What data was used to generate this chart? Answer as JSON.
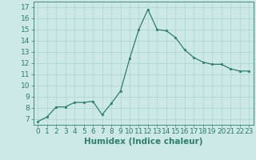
{
  "x": [
    0,
    1,
    2,
    3,
    4,
    5,
    6,
    7,
    8,
    9,
    10,
    11,
    12,
    13,
    14,
    15,
    16,
    17,
    18,
    19,
    20,
    21,
    22,
    23
  ],
  "y": [
    6.8,
    7.2,
    8.1,
    8.1,
    8.5,
    8.5,
    8.6,
    7.4,
    8.4,
    9.5,
    12.4,
    15.0,
    16.8,
    15.0,
    14.9,
    14.3,
    13.2,
    12.5,
    12.1,
    11.9,
    11.9,
    11.5,
    11.3,
    11.3
  ],
  "line_color": "#2e7d6e",
  "marker": "s",
  "marker_size": 2,
  "bg_color": "#cce9e7",
  "grid_color": "#b0d8d5",
  "xlabel": "Humidex (Indice chaleur)",
  "ylim": [
    6.5,
    17.5
  ],
  "xlim": [
    -0.5,
    23.5
  ],
  "yticks": [
    7,
    8,
    9,
    10,
    11,
    12,
    13,
    14,
    15,
    16,
    17
  ],
  "xticks": [
    0,
    1,
    2,
    3,
    4,
    5,
    6,
    7,
    8,
    9,
    10,
    11,
    12,
    13,
    14,
    15,
    16,
    17,
    18,
    19,
    20,
    21,
    22,
    23
  ],
  "tick_fontsize": 6.5,
  "xlabel_fontsize": 7.5
}
